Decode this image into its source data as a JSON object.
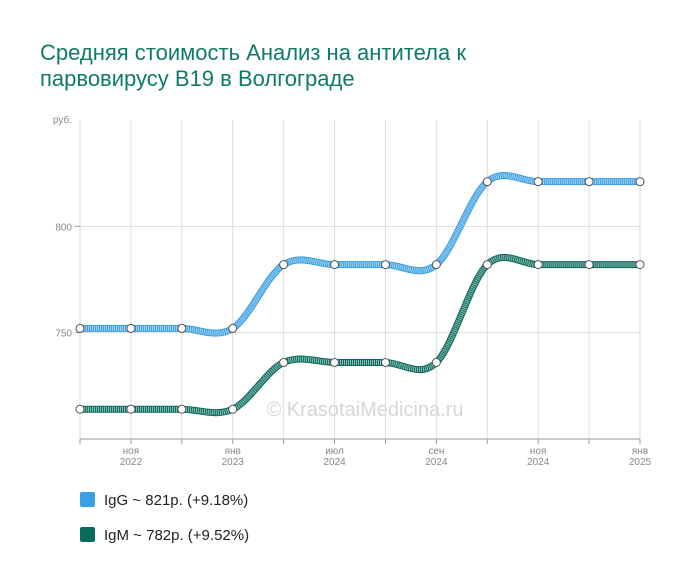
{
  "chart_data": {
    "type": "line",
    "title": [
      "Средняя стоимость Анализ на антитела к",
      "парвовирусу B19 в Волгограде"
    ],
    "y_label": "руб.",
    "watermark": "© KrasotaiMedicina.ru",
    "categories": [
      null,
      "ноя 2022",
      null,
      "янв 2023",
      null,
      "июл 2024",
      null,
      "сен 2024",
      null,
      "ноя 2024",
      null,
      "янв 2025"
    ],
    "series": [
      {
        "name": "IgG ~ 821р. (+9.18%)",
        "color": "#3b9fe2",
        "values": [
          752,
          752,
          752,
          752,
          782,
          782,
          782,
          782,
          821,
          821,
          821,
          821
        ]
      },
      {
        "name": "IgM ~ 782р. (+9.52%)",
        "color": "#0a6b5d",
        "values": [
          714,
          714,
          714,
          714,
          736,
          736,
          736,
          736,
          782,
          782,
          782,
          782
        ]
      }
    ],
    "ylim": [
      700,
      850
    ],
    "yticks": [
      750,
      800
    ],
    "grid": true
  }
}
